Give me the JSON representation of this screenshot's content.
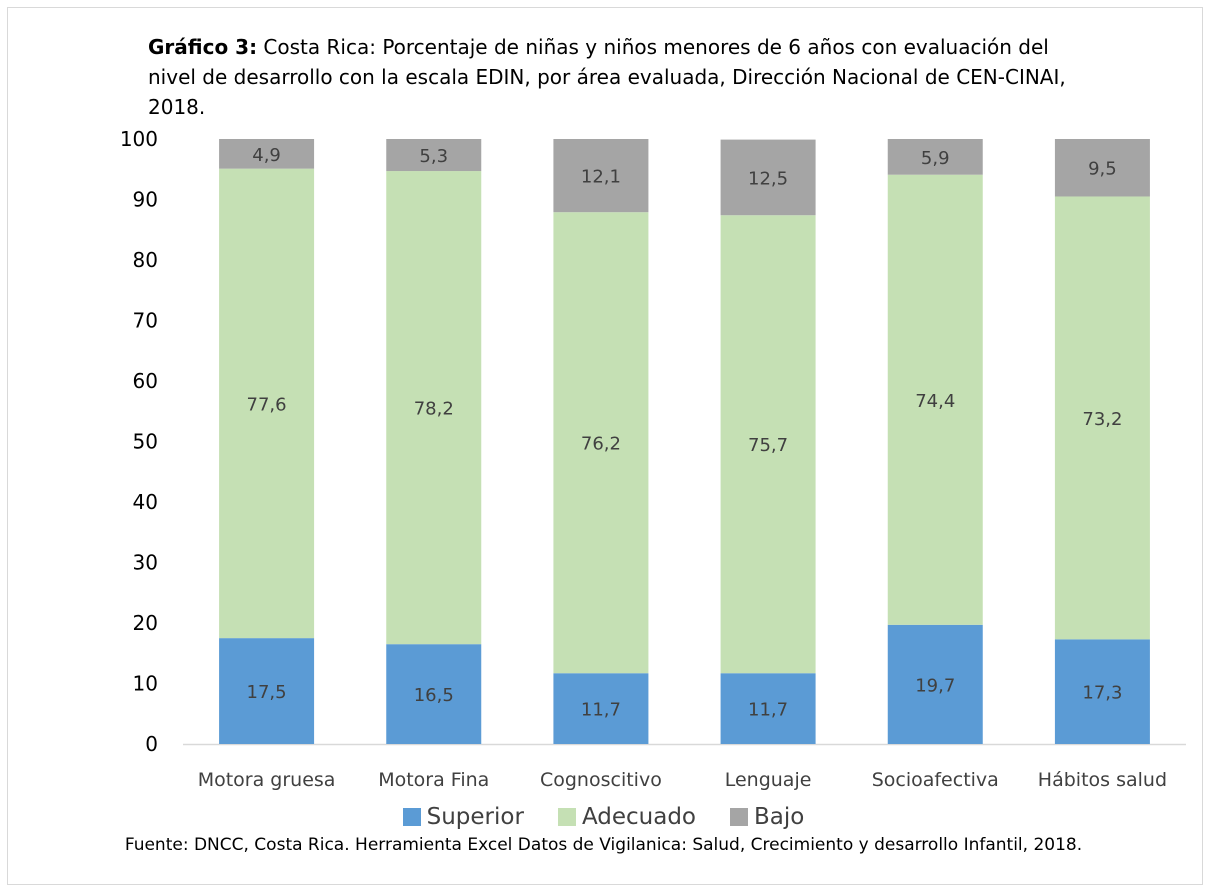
{
  "title": {
    "bold": "Gráfico 3:",
    "text": " Costa Rica: Porcentaje de niñas y niños menores de 6 años con evaluación del nivel de desarrollo con la escala EDIN, por área evaluada,  Dirección Nacional de CEN-CINAI, 2018."
  },
  "source": "Fuente: DNCC, Costa Rica. Herramienta Excel Datos de Vigilanica: Salud, Crecimiento y desarrollo Infantil, 2018.",
  "chart_data": {
    "type": "bar",
    "stacked": true,
    "categories": [
      "Motora gruesa",
      "Motora Fina",
      "Cognoscitivo",
      "Lenguaje",
      "Socioafectiva",
      "Hábitos salud"
    ],
    "series": [
      {
        "name": "Superior",
        "color": "#5b9bd5",
        "values": [
          17.5,
          16.5,
          11.7,
          11.7,
          19.7,
          17.3
        ],
        "labels": [
          "17,5",
          "16,5",
          "11,7",
          "11,7",
          "19,7",
          "17,3"
        ]
      },
      {
        "name": "Adecuado",
        "color": "#c5e0b4",
        "values": [
          77.6,
          78.2,
          76.2,
          75.7,
          74.4,
          73.2
        ],
        "labels": [
          "77,6",
          "78,2",
          "76,2",
          "75,7",
          "74,4",
          "73,2"
        ]
      },
      {
        "name": "Bajo",
        "color": "#a5a5a5",
        "values": [
          4.9,
          5.3,
          12.1,
          12.5,
          5.9,
          9.5
        ],
        "labels": [
          "4,9",
          "5,3",
          "12,1",
          "12,5",
          "5,9",
          "9,5"
        ]
      }
    ],
    "yticks": [
      0,
      10,
      20,
      30,
      40,
      50,
      60,
      70,
      80,
      90,
      100
    ],
    "ylim": [
      0,
      100
    ],
    "grid": false,
    "legend_position": "bottom"
  }
}
